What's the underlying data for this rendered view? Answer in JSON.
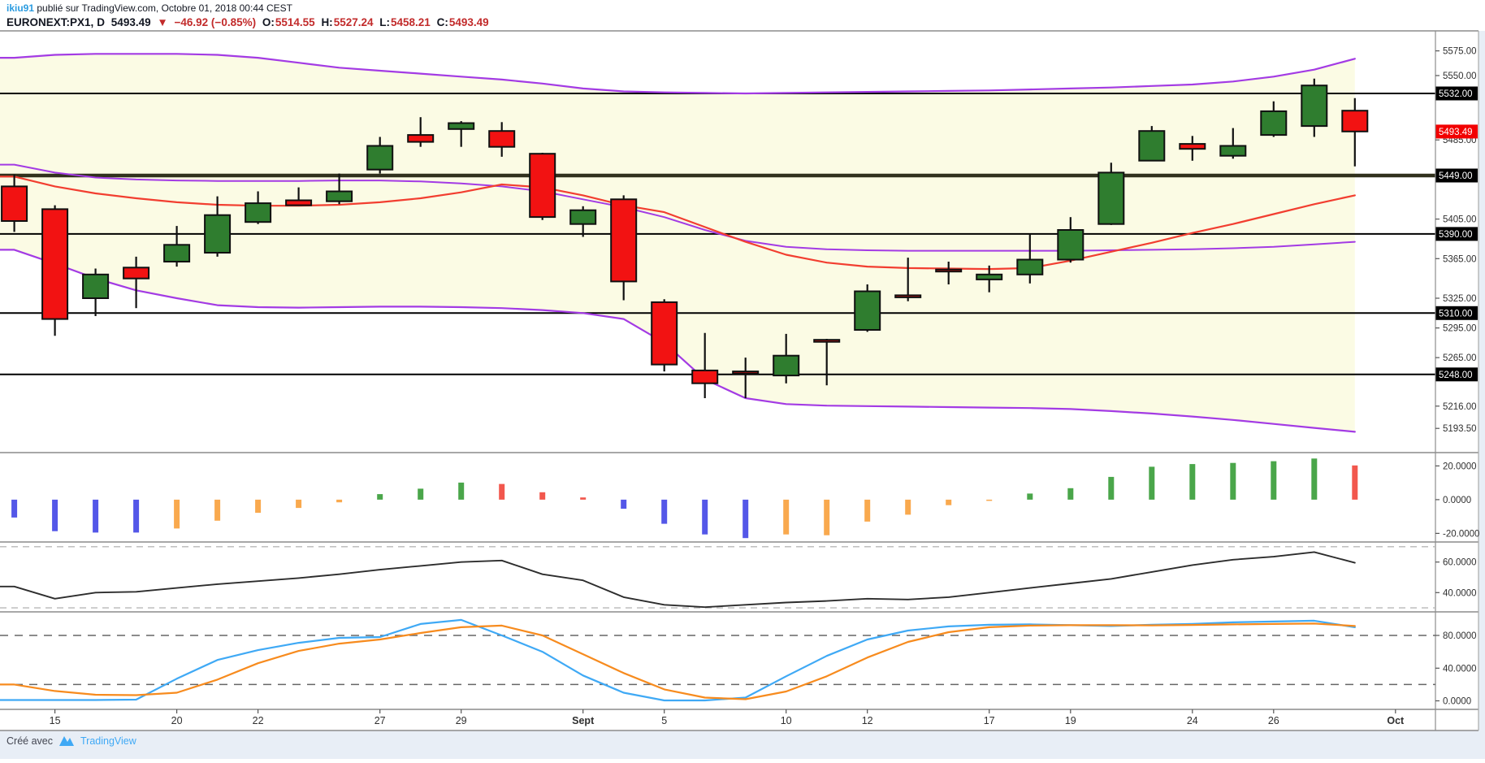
{
  "header": {
    "author": "ikiu91",
    "published_text": "publié sur TradingView.com, Octobre 01, 2018 00:44 CEST",
    "symbol": "EURONEXT:PX1,",
    "interval": "D",
    "last_price": "5493.49",
    "direction_icon": "▼",
    "change_text": "−46.92 (−0.85%)",
    "ohlc": [
      {
        "label": "O:",
        "value": "5514.55"
      },
      {
        "label": "H:",
        "value": "5527.24"
      },
      {
        "label": "L:",
        "value": "5458.21"
      },
      {
        "label": "C:",
        "value": "5493.49"
      }
    ]
  },
  "footer": {
    "created_with": "Créé avec",
    "brand": "TradingView"
  },
  "colors": {
    "page_edge": "#e8eef6",
    "up": "#2f7d2f",
    "down": "#f21212",
    "candle_stroke": "#101010",
    "bb_fill": "#fbfbe4",
    "bb_line": "#a33be4",
    "ma_red": "#f23e30",
    "hist_blue": "#5457e8",
    "hist_orange": "#f9a94e",
    "hist_green": "#4aa64a",
    "hist_red": "#f2574d",
    "rsi_line": "#2d2d2d",
    "stoch_k": "#3fa9f5",
    "stoch_d": "#f78b1e",
    "separator": "#8c8c8c",
    "axis_text": "#2f2f2f",
    "tick": "#555555",
    "badge_bg": "#000000",
    "badge_text": "#ffffff",
    "last_badge": "#f20000",
    "level_thin": "#000000",
    "level_thick": "#31311d",
    "dash_rsi": "#b8b8b8",
    "dash_stoch": "#666666"
  },
  "chart_data": {
    "type": "candlestick+indicators",
    "bars": 34,
    "candles": [
      [
        5438,
        5450,
        5392,
        5403
      ],
      [
        5415,
        5419,
        5287,
        5304
      ],
      [
        5325,
        5355,
        5307,
        5349
      ],
      [
        5356,
        5367,
        5315,
        5345
      ],
      [
        5362,
        5398,
        5357,
        5379
      ],
      [
        5371,
        5428,
        5367,
        5409
      ],
      [
        5402,
        5433,
        5400,
        5421
      ],
      [
        5424,
        5437,
        5419,
        5419
      ],
      [
        5423,
        5451,
        5420,
        5433
      ],
      [
        5455,
        5488,
        5451,
        5479
      ],
      [
        5490,
        5508,
        5478,
        5483
      ],
      [
        5496,
        5504,
        5478,
        5502
      ],
      [
        5494,
        5503,
        5468,
        5478
      ],
      [
        5471,
        5472,
        5404,
        5407
      ],
      [
        5400,
        5418,
        5387,
        5414
      ],
      [
        5425,
        5429,
        5323,
        5342
      ],
      [
        5321,
        5324,
        5251,
        5258
      ],
      [
        5252,
        5290,
        5224,
        5239
      ],
      [
        5251,
        5265,
        5224,
        5249
      ],
      [
        5247,
        5289,
        5239,
        5267
      ],
      [
        5283,
        5284,
        5237,
        5282
      ],
      [
        5293,
        5339,
        5291,
        5332
      ],
      [
        5328,
        5366,
        5322,
        5327
      ],
      [
        5354,
        5362,
        5339,
        5353
      ],
      [
        5344,
        5358,
        5331,
        5349
      ],
      [
        5349,
        5390,
        5340,
        5364
      ],
      [
        5364,
        5407,
        5361,
        5394
      ],
      [
        5400,
        5462,
        5399,
        5452
      ],
      [
        5464,
        5499,
        5464,
        5494
      ],
      [
        5481,
        5489,
        5464,
        5476
      ],
      [
        5469,
        5497,
        5466,
        5479
      ],
      [
        5490,
        5524,
        5488,
        5514
      ],
      [
        5499,
        5547,
        5488,
        5540
      ],
      [
        5514.55,
        5527.24,
        5458.21,
        5493.49
      ]
    ],
    "bb_upper": [
      5568,
      5571,
      5572,
      5572,
      5572,
      5571,
      5568,
      5563,
      5558,
      5555,
      5552,
      5549,
      5546,
      5542,
      5537,
      5534,
      5533,
      5532.5,
      5532,
      5532.5,
      5533,
      5533.5,
      5534,
      5534.5,
      5535,
      5536,
      5537,
      5538,
      5539.5,
      5541,
      5544,
      5549,
      5556,
      5567
    ],
    "bb_basis": [
      5460,
      5452,
      5447,
      5445,
      5444,
      5443.5,
      5443.5,
      5443.5,
      5444,
      5444,
      5443,
      5441,
      5438,
      5433,
      5425,
      5417,
      5407,
      5394,
      5383,
      5377,
      5374.5,
      5373.5,
      5373,
      5373,
      5373,
      5373,
      5373,
      5373.5,
      5374,
      5374.5,
      5375.5,
      5377,
      5379.5,
      5382
    ],
    "bb_lower": [
      5374,
      5360,
      5345,
      5333,
      5325,
      5318,
      5316,
      5315.5,
      5316,
      5316.5,
      5316.5,
      5316,
      5315,
      5313,
      5310,
      5304,
      5280,
      5243,
      5224,
      5218,
      5216.5,
      5216,
      5215.5,
      5215,
      5214.5,
      5214,
      5213,
      5211,
      5208.5,
      5205.5,
      5202,
      5198,
      5194,
      5190
    ],
    "ma_red": [
      5448,
      5438,
      5431,
      5426,
      5422,
      5419.5,
      5418.5,
      5418.5,
      5419.5,
      5422,
      5426,
      5432,
      5440,
      5437,
      5429,
      5419,
      5412,
      5397,
      5382,
      5369,
      5361,
      5357,
      5355.5,
      5355,
      5354.5,
      5355.5,
      5363,
      5372,
      5381,
      5391,
      5400,
      5410,
      5420,
      5429
    ],
    "histogram": {
      "values": [
        -10.6,
        -18.7,
        -19.5,
        -19.5,
        -17.1,
        -12.5,
        -7.8,
        -4.9,
        -1.6,
        3.3,
        6.5,
        10.1,
        9.3,
        4.4,
        1.3,
        -5.4,
        -14.3,
        -20.6,
        -22.8,
        -20.6,
        -21.1,
        -13,
        -8.9,
        -3.3,
        -0.5,
        3.6,
        6.8,
        13.5,
        19.5,
        21.1,
        21.8,
        22.8,
        24.4,
        20.3
      ],
      "colors": [
        "blue",
        "blue",
        "blue",
        "blue",
        "orange",
        "orange",
        "orange",
        "orange",
        "orange",
        "green",
        "green",
        "green",
        "red",
        "red",
        "red",
        "blue",
        "blue",
        "blue",
        "blue",
        "orange",
        "orange",
        "orange",
        "orange",
        "orange",
        "orange",
        "green",
        "green",
        "green",
        "green",
        "green",
        "green",
        "green",
        "green",
        "red"
      ]
    },
    "rsi": [
      44,
      36,
      40,
      40.5,
      43,
      45.5,
      47.5,
      49.5,
      52,
      55,
      57.5,
      60,
      61,
      52,
      48,
      37,
      32,
      30.5,
      32,
      33.5,
      34.5,
      36,
      35.5,
      37,
      40,
      43,
      46,
      49,
      53.5,
      58,
      61.5,
      63.5,
      66.5,
      59.5
    ],
    "stoch_k": [
      1,
      1,
      1,
      1.5,
      27,
      50,
      62,
      71,
      77,
      78,
      94,
      99,
      80,
      60,
      31,
      10,
      0.5,
      0.5,
      4,
      30,
      55,
      75,
      86,
      91,
      93,
      93.5,
      92.5,
      91.5,
      93,
      94,
      96,
      97,
      98,
      90
    ],
    "stoch_d": [
      20,
      12,
      7.5,
      7,
      10,
      26,
      46,
      61,
      70,
      75,
      83,
      90,
      92,
      80,
      57,
      34,
      14,
      4,
      2,
      11.5,
      30,
      53,
      72,
      84,
      90,
      92,
      92.5,
      92.5,
      92.3,
      92.8,
      93.5,
      94,
      94.5,
      91.5
    ],
    "price_levels": [
      {
        "v": 5532,
        "label": "5532.00",
        "thick": false
      },
      {
        "v": 5449,
        "label": "5449.00",
        "thick": true
      },
      {
        "v": 5390,
        "label": "5390.00",
        "thick": false
      },
      {
        "v": 5310,
        "label": "5310.00",
        "thick": false
      },
      {
        "v": 5248,
        "label": "5248.00",
        "thick": false
      }
    ],
    "last_price_marker": {
      "v": 5493.49,
      "label": "5493.49"
    },
    "price_ticks": [
      {
        "v": 5575,
        "label": "5575.00"
      },
      {
        "v": 5550,
        "label": "5550.00"
      },
      {
        "v": 5485,
        "label": "5485.00"
      },
      {
        "v": 5405,
        "label": "5405.00"
      },
      {
        "v": 5365,
        "label": "5365.00"
      },
      {
        "v": 5325,
        "label": "5325.00"
      },
      {
        "v": 5295,
        "label": "5295.00"
      },
      {
        "v": 5265,
        "label": "5265.00"
      },
      {
        "v": 5216,
        "label": "5216.00"
      },
      {
        "v": 5193.5,
        "label": "5193.50"
      }
    ],
    "pane2_ticks": [
      {
        "v": 20,
        "label": "20.0000"
      },
      {
        "v": 0,
        "label": "0.0000"
      },
      {
        "v": -20,
        "label": "-20.0000"
      }
    ],
    "pane3_ticks": [
      {
        "v": 60,
        "label": "60.0000"
      },
      {
        "v": 40,
        "label": "40.0000"
      }
    ],
    "pane3_dashes": [
      70,
      30
    ],
    "pane4_ticks": [
      {
        "v": 80,
        "label": "80.0000"
      },
      {
        "v": 40,
        "label": "40.0000"
      },
      {
        "v": 0,
        "label": "0.0000"
      }
    ],
    "pane4_dashes": [
      80,
      20
    ],
    "x_labels": [
      {
        "i": 1,
        "label": "15",
        "bold": false
      },
      {
        "i": 4,
        "label": "20",
        "bold": false
      },
      {
        "i": 6,
        "label": "22",
        "bold": false
      },
      {
        "i": 9,
        "label": "27",
        "bold": false
      },
      {
        "i": 11,
        "label": "29",
        "bold": false
      },
      {
        "i": 14,
        "label": "Sept",
        "bold": true
      },
      {
        "i": 16,
        "label": "5",
        "bold": false
      },
      {
        "i": 19,
        "label": "10",
        "bold": false
      },
      {
        "i": 21,
        "label": "12",
        "bold": false
      },
      {
        "i": 24,
        "label": "17",
        "bold": false
      },
      {
        "i": 26,
        "label": "19",
        "bold": false
      },
      {
        "i": 29,
        "label": "24",
        "bold": false
      },
      {
        "i": 31,
        "label": "26",
        "bold": false
      },
      {
        "i": 34,
        "label": "Oct",
        "bold": true
      }
    ],
    "ylim_main": [
      5169,
      5595.2
    ],
    "ylim_hist": [
      -25.1,
      27.9
    ],
    "ylim_rsi": [
      27.4,
      73.1
    ],
    "ylim_stoch": [
      -10.4,
      108.8
    ]
  }
}
